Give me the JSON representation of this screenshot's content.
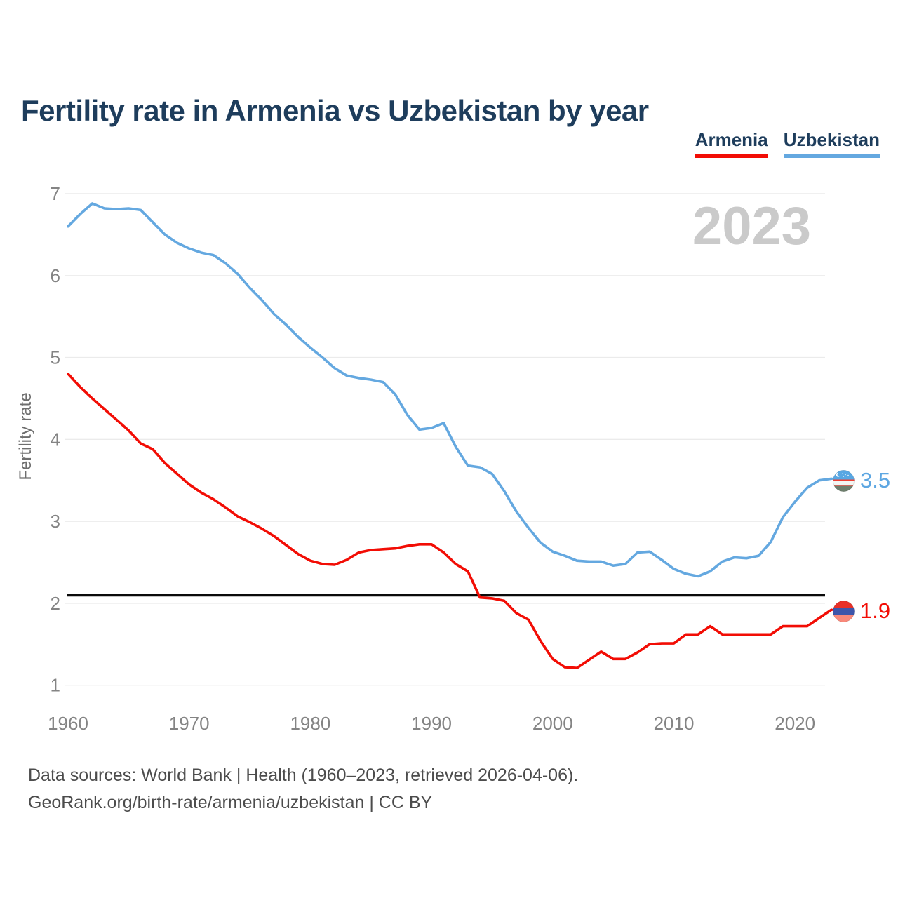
{
  "header": {
    "title": "Fertility rate in Armenia vs Uzbekistan by year"
  },
  "legend": [
    {
      "label": "Armenia",
      "color": "#f20d05"
    },
    {
      "label": "Uzbekistan",
      "color": "#64a8e0"
    }
  ],
  "watermark": "2023",
  "end_labels": [
    {
      "series": "Uzbekistan",
      "value": "3.5",
      "flag": "uzbekistan-flag"
    },
    {
      "series": "Armenia",
      "value": "1.9",
      "flag": "armenia-flag"
    }
  ],
  "footer": {
    "line1": "Data sources: World Bank | Health (1960–2023, retrieved 2026-04-06).",
    "line2": "GeoRank.org/birth-rate/armenia/uzbekistan | CC BY"
  },
  "chart_data": {
    "type": "line",
    "title": "Fertility rate in Armenia vs Uzbekistan by year",
    "xlabel": "",
    "ylabel": "Fertility rate",
    "ylim": [
      1,
      7
    ],
    "yticks": [
      1,
      2,
      3,
      4,
      5,
      6,
      7
    ],
    "xticks": [
      1960,
      1970,
      1980,
      1990,
      2000,
      2010,
      2020
    ],
    "grid": true,
    "legend_position": "top-right",
    "reference_line": {
      "value": 2.1,
      "color": "#0a0a0a"
    },
    "x": [
      1960,
      1961,
      1962,
      1963,
      1964,
      1965,
      1966,
      1967,
      1968,
      1969,
      1970,
      1971,
      1972,
      1973,
      1974,
      1975,
      1976,
      1977,
      1978,
      1979,
      1980,
      1981,
      1982,
      1983,
      1984,
      1985,
      1986,
      1987,
      1988,
      1989,
      1990,
      1991,
      1992,
      1993,
      1994,
      1995,
      1996,
      1997,
      1998,
      1999,
      2000,
      2001,
      2002,
      2003,
      2004,
      2005,
      2006,
      2007,
      2008,
      2009,
      2010,
      2011,
      2012,
      2013,
      2014,
      2015,
      2016,
      2017,
      2018,
      2019,
      2020,
      2021,
      2022,
      2023
    ],
    "series": [
      {
        "name": "Uzbekistan",
        "color": "#64a8e0",
        "values": [
          6.6,
          6.75,
          6.88,
          6.82,
          6.81,
          6.82,
          6.8,
          6.65,
          6.5,
          6.4,
          6.33,
          6.28,
          6.25,
          6.15,
          6.02,
          5.85,
          5.7,
          5.53,
          5.4,
          5.25,
          5.12,
          5.0,
          4.87,
          4.78,
          4.75,
          4.73,
          4.7,
          4.55,
          4.3,
          4.12,
          4.14,
          4.2,
          3.91,
          3.68,
          3.66,
          3.58,
          3.37,
          3.12,
          2.92,
          2.74,
          2.63,
          2.58,
          2.52,
          2.51,
          2.51,
          2.46,
          2.48,
          2.62,
          2.63,
          2.53,
          2.42,
          2.36,
          2.33,
          2.39,
          2.51,
          2.56,
          2.55,
          2.58,
          2.75,
          3.05,
          3.24,
          3.41,
          3.5,
          3.52
        ]
      },
      {
        "name": "Armenia",
        "color": "#f20d05",
        "values": [
          4.8,
          4.64,
          4.5,
          4.37,
          4.24,
          4.11,
          3.95,
          3.88,
          3.71,
          3.58,
          3.45,
          3.35,
          3.27,
          3.17,
          3.06,
          2.99,
          2.91,
          2.82,
          2.71,
          2.6,
          2.52,
          2.48,
          2.47,
          2.53,
          2.62,
          2.65,
          2.66,
          2.67,
          2.7,
          2.72,
          2.72,
          2.62,
          2.48,
          2.39,
          2.07,
          2.06,
          2.03,
          1.88,
          1.8,
          1.54,
          1.32,
          1.22,
          1.21,
          1.31,
          1.41,
          1.32,
          1.32,
          1.4,
          1.5,
          1.51,
          1.51,
          1.62,
          1.62,
          1.72,
          1.62,
          1.62,
          1.62,
          1.62,
          1.62,
          1.72,
          1.72,
          1.72,
          1.82,
          1.92
        ]
      }
    ]
  }
}
